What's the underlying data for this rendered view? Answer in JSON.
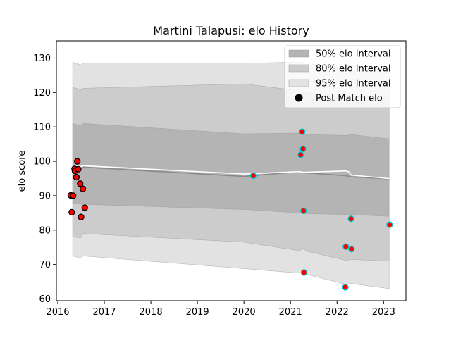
{
  "chart_data": {
    "type": "scatter",
    "title": "Martini Talapusi: elo History",
    "xlabel": "",
    "ylabel": "elo score",
    "xlim": [
      2015.97,
      2023.48
    ],
    "ylim": [
      59.5,
      135
    ],
    "xticks": [
      2016,
      2017,
      2018,
      2019,
      2020,
      2021,
      2022,
      2023
    ],
    "yticks": [
      60,
      70,
      80,
      90,
      100,
      110,
      120,
      130
    ],
    "grid": false,
    "legend_position": "top-right",
    "legend": [
      {
        "label": "50% elo Interval",
        "kind": "band",
        "color": "#b4b4b4"
      },
      {
        "label": "80% elo Interval",
        "kind": "band",
        "color": "#cccccc"
      },
      {
        "label": "95% elo Interval",
        "kind": "band",
        "color": "#e2e2e2"
      },
      {
        "label": "Post Match elo",
        "kind": "marker",
        "color": "#000000"
      }
    ],
    "series": [
      {
        "kind": "band",
        "level": "95%",
        "x": [
          2016.32,
          2016.5,
          2016.55,
          2020.0,
          2021.2,
          2021.28,
          2021.3,
          2022.2,
          2022.3,
          2023.12
        ],
        "lower": [
          72.5,
          71.8,
          72.5,
          68.8,
          67.5,
          68.0,
          67.3,
          64.2,
          64.5,
          63.0
        ],
        "upper": [
          128.8,
          128.0,
          128.5,
          128.5,
          128.8,
          128.5,
          128.2,
          127.5,
          127.8,
          126.5
        ]
      },
      {
        "kind": "band",
        "level": "80%",
        "x": [
          2016.32,
          2016.5,
          2016.55,
          2020.0,
          2021.2,
          2021.28,
          2021.3,
          2022.2,
          2022.3,
          2023.12
        ],
        "lower": [
          78.0,
          77.8,
          79.0,
          76.5,
          74.0,
          74.8,
          74.0,
          71.2,
          71.5,
          71.0
        ],
        "upper": [
          121.5,
          120.8,
          121.2,
          122.5,
          120.5,
          120.2,
          120.0,
          118.5,
          118.8,
          118.5
        ]
      },
      {
        "kind": "band",
        "level": "50%",
        "x": [
          2016.32,
          2016.5,
          2016.55,
          2020.0,
          2021.2,
          2021.28,
          2021.3,
          2022.2,
          2022.3,
          2023.12
        ],
        "lower": [
          87.8,
          87.5,
          87.5,
          86.0,
          85.0,
          85.2,
          84.8,
          84.5,
          84.5,
          84.0
        ],
        "upper": [
          111.0,
          110.3,
          111.0,
          108.0,
          108.2,
          108.0,
          107.8,
          107.5,
          107.8,
          106.5
        ]
      },
      {
        "kind": "line",
        "name": "median",
        "color": "#8a8a8a",
        "x": [
          2016.32,
          2016.5,
          2016.55,
          2020.0,
          2021.2,
          2021.28,
          2022.2,
          2022.3,
          2023.12
        ],
        "y": [
          98.3,
          97.8,
          98.3,
          95.6,
          97.0,
          96.7,
          95.8,
          95.5,
          94.9
        ]
      },
      {
        "kind": "line",
        "name": "mean",
        "color": "#ffffff",
        "x": [
          2016.32,
          2016.5,
          2016.55,
          2020.0,
          2021.2,
          2021.28,
          2022.2,
          2022.27,
          2022.3,
          2023.12
        ],
        "y": [
          98.8,
          98.5,
          98.7,
          96.3,
          97.0,
          96.8,
          97.2,
          96.8,
          96.0,
          95.0
        ]
      },
      {
        "kind": "scatter",
        "name": "Post Match elo (red)",
        "fill": "#ff0000",
        "edge": "#000000",
        "x": [
          2016.28,
          2016.3,
          2016.33,
          2016.36,
          2016.37,
          2016.4,
          2016.42,
          2016.44,
          2016.48,
          2016.5,
          2016.54,
          2016.58
        ],
        "y": [
          90.1,
          85.2,
          90.0,
          97.8,
          97.2,
          95.4,
          100.0,
          97.7,
          93.5,
          83.8,
          92.0,
          86.5
        ]
      },
      {
        "kind": "scatter",
        "name": "Post Match elo (cyan)",
        "fill": "#ff0000",
        "edge": "#00c8d8",
        "x": [
          2020.2,
          2021.22,
          2021.25,
          2021.27,
          2021.28,
          2021.29,
          2022.18,
          2022.19,
          2022.3,
          2022.31,
          2023.13
        ],
        "y": [
          95.8,
          101.9,
          108.6,
          103.6,
          85.6,
          67.7,
          63.4,
          75.2,
          83.3,
          74.5,
          81.6
        ]
      }
    ]
  }
}
